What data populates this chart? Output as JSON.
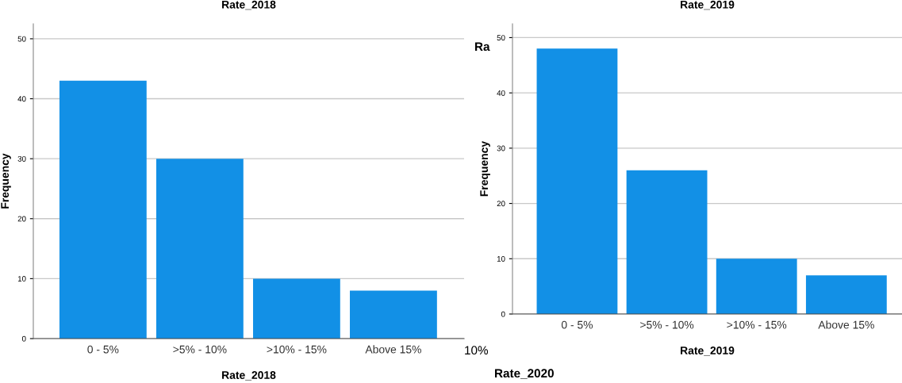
{
  "chart_data": [
    {
      "type": "bar",
      "title": "Rate_2018",
      "xlabel": "Rate_2018",
      "ylabel": "Frequency",
      "categories": [
        "0 - 5%",
        ">5% - 10%",
        ">10% - 15%",
        "Above 15%"
      ],
      "values": [
        43,
        30,
        10,
        8
      ],
      "color": "#1290e6",
      "ylim": [
        0,
        52.5
      ],
      "yticks": [
        0,
        10,
        20,
        30,
        40,
        50
      ],
      "grid": "y"
    },
    {
      "type": "bar",
      "title": "Rate_2019",
      "xlabel": "Rate_2019",
      "ylabel": "Frequency",
      "categories": [
        "0 - 5%",
        ">5% - 10%",
        ">10% - 15%",
        "Above 15%"
      ],
      "values": [
        48,
        26,
        10,
        7
      ],
      "color": "#1290e6",
      "ylim": [
        0,
        52.5
      ],
      "yticks": [
        0,
        10,
        20,
        30,
        40,
        50
      ],
      "grid": "y"
    },
    {
      "type": "other",
      "annotations": [
        "Ra",
        "10%",
        "Rate_2020"
      ]
    }
  ]
}
